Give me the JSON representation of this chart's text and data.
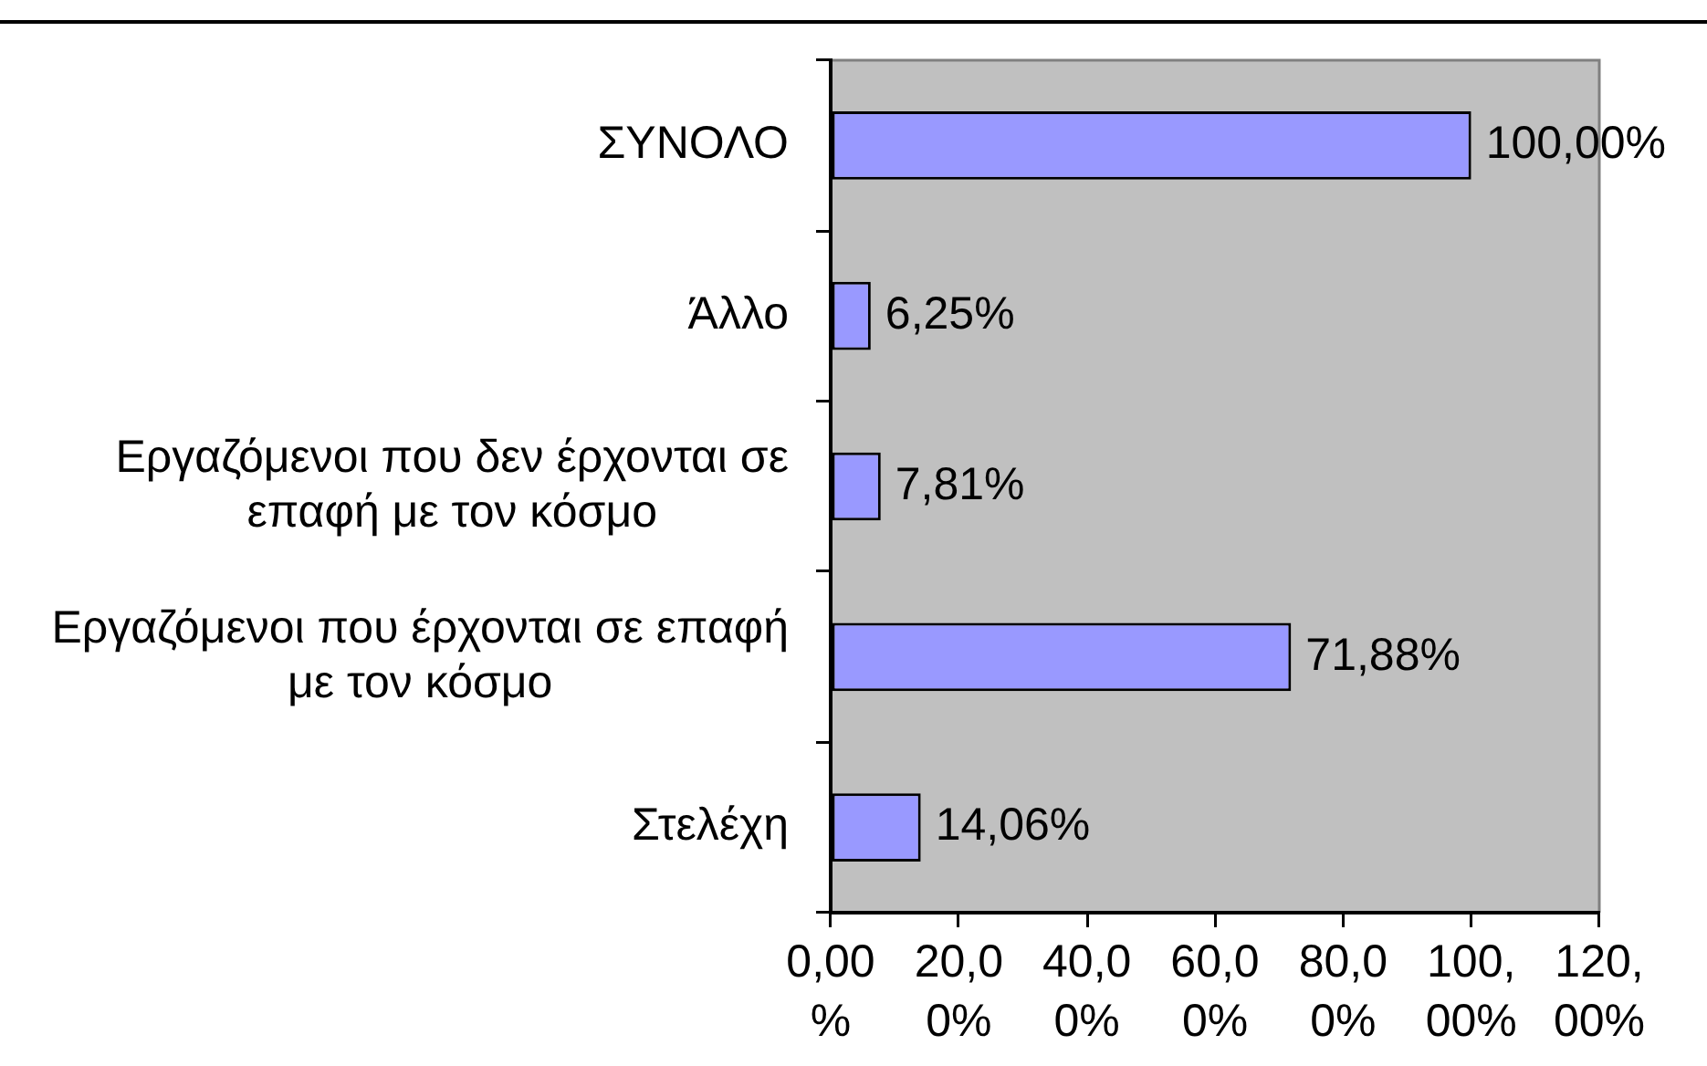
{
  "chart_data": {
    "type": "bar",
    "orientation": "horizontal",
    "categories": [
      "ΣΥΝΟΛΟ",
      "Άλλο",
      "Εργαζόμενοι που δεν έρχονται σε επαφή με τον κόσμο",
      "Εργαζόμενοι που έρχονται σε επαφή με τον κόσμο",
      "Στελέχη"
    ],
    "values": [
      100,
      6.25,
      7.81,
      71.88,
      14.06
    ],
    "color": "#9999ff",
    "value_labels": [
      "100,00%",
      "6,25%",
      "7,81%",
      "71,88%",
      "14,06%"
    ],
    "xlim": [
      0,
      120
    ],
    "xticks": [
      {
        "value": 0,
        "label": "0,00%"
      },
      {
        "value": 20,
        "label": "20,00%"
      },
      {
        "value": 40,
        "label": "40,00%"
      },
      {
        "value": 60,
        "label": "60,00%"
      },
      {
        "value": 80,
        "label": "80,00%"
      },
      {
        "value": 100,
        "label": "100,00%"
      },
      {
        "value": 120,
        "label": "120,00%"
      }
    ]
  }
}
